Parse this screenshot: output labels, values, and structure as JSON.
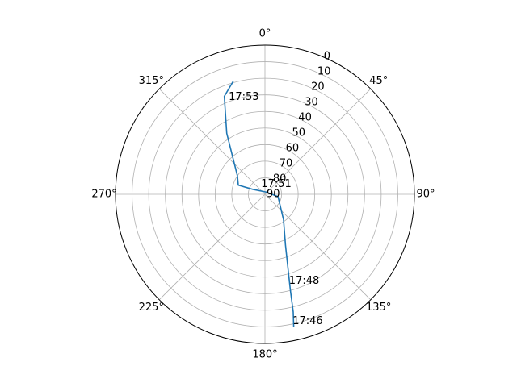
{
  "chart_data": {
    "type": "line",
    "projection": "polar",
    "theta_zero_location": "N",
    "theta_direction": "clockwise",
    "r_axis": "inverted (center = 90, edge = 0)",
    "rlim": [
      90,
      0
    ],
    "grid": true,
    "theta_ticks": [
      {
        "deg": 0,
        "label": "0°"
      },
      {
        "deg": 45,
        "label": "45°"
      },
      {
        "deg": 90,
        "label": "90°"
      },
      {
        "deg": 135,
        "label": "135°"
      },
      {
        "deg": 180,
        "label": "180°"
      },
      {
        "deg": 225,
        "label": "225°"
      },
      {
        "deg": 270,
        "label": "270°"
      },
      {
        "deg": 315,
        "label": "315°"
      }
    ],
    "r_ticks": [
      0,
      10,
      20,
      30,
      40,
      50,
      60,
      70,
      80,
      90
    ],
    "r_tick_labels": [
      "0",
      "10",
      "20",
      "30",
      "40",
      "50",
      "60",
      "70",
      "80",
      "90"
    ],
    "line_color": "#1f77b4",
    "series": [
      {
        "points": [
          {
            "az": 167.8,
            "el": 8
          },
          {
            "az": 166.5,
            "el": 17
          },
          {
            "az": 165.2,
            "el": 30
          },
          {
            "az": 163,
            "el": 42
          },
          {
            "az": 158,
            "el": 57
          },
          {
            "az": 144,
            "el": 71
          },
          {
            "az": 100,
            "el": 82
          },
          {
            "az": 20,
            "el": 88.5
          },
          {
            "az": 292,
            "el": 82
          },
          {
            "az": 289,
            "el": 73
          },
          {
            "az": 304,
            "el": 70
          },
          {
            "az": 328,
            "el": 46.6
          },
          {
            "az": 337.5,
            "el": 26
          },
          {
            "az": 344.5,
            "el": 19
          }
        ]
      }
    ],
    "annotations": [
      {
        "label": "17:46",
        "az": 168,
        "el": 10
      },
      {
        "label": "17:48",
        "az": 165,
        "el": 34
      },
      {
        "label": "17:51",
        "az": 333,
        "el": 85
      },
      {
        "label": "17:53",
        "az": 339,
        "el": 29
      }
    ]
  }
}
